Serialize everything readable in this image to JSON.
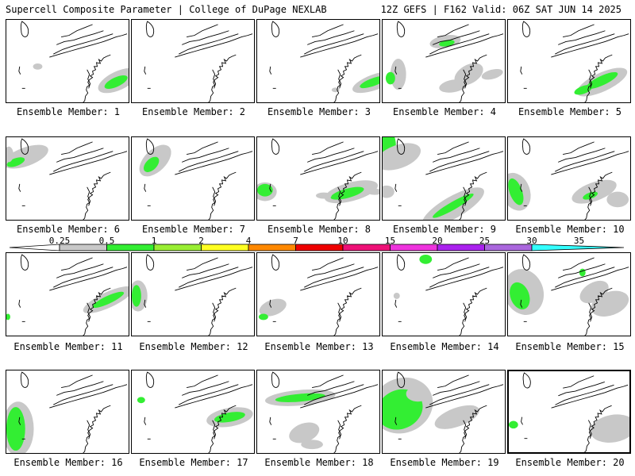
{
  "header": {
    "left": "Supercell Composite Parameter | College of DuPage NEXLAB",
    "right": "12Z GEFS | F162 Valid: 06Z SAT JUN 14 2025"
  },
  "colorbar": {
    "labels": [
      "0.25",
      "0.5",
      "1",
      "2",
      "4",
      "7",
      "10",
      "15",
      "20",
      "25",
      "30",
      "35"
    ],
    "colors": [
      "#ffffff",
      "#c8c8c8",
      "#33ee33",
      "#99ee33",
      "#ffff22",
      "#ff8800",
      "#ee0000",
      "#ee1177",
      "#ee33dd",
      "#aa22ee",
      "#aa66dd",
      "#33ffff"
    ]
  },
  "colors": {
    "light_gray": "#c8c8c8",
    "green": "#33ee33",
    "lime": "#99ee33",
    "coast": "#000000"
  },
  "panels": [
    {
      "label": "Ensemble Member: 1"
    },
    {
      "label": "Ensemble Member: 2"
    },
    {
      "label": "Ensemble Member: 3"
    },
    {
      "label": "Ensemble Member: 4"
    },
    {
      "label": "Ensemble Member: 5"
    },
    {
      "label": "Ensemble Member: 6"
    },
    {
      "label": "Ensemble Member: 7"
    },
    {
      "label": "Ensemble Member: 8"
    },
    {
      "label": "Ensemble Member: 9"
    },
    {
      "label": "Ensemble Member: 10"
    },
    {
      "label": "Ensemble Member: 11"
    },
    {
      "label": "Ensemble Member: 12"
    },
    {
      "label": "Ensemble Member: 13"
    },
    {
      "label": "Ensemble Member: 14"
    },
    {
      "label": "Ensemble Member: 15"
    },
    {
      "label": "Ensemble Member: 16"
    },
    {
      "label": "Ensemble Member: 17"
    },
    {
      "label": "Ensemble Member: 18"
    },
    {
      "label": "Ensemble Member: 19"
    },
    {
      "label": "Ensemble Member: 20",
      "selected": true
    }
  ]
}
